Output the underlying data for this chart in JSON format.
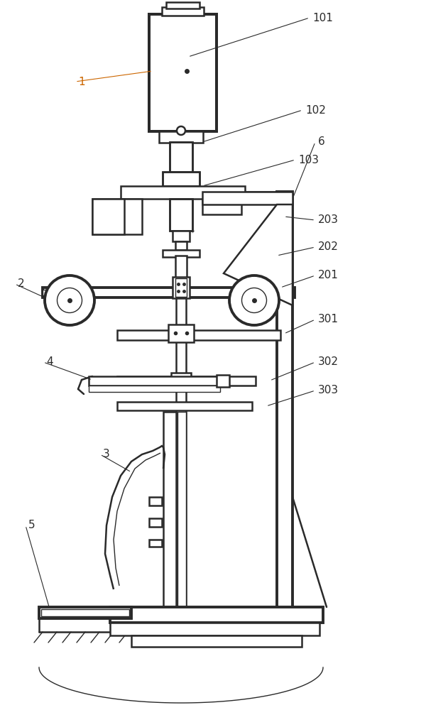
{
  "bg_color": "#ffffff",
  "line_color": "#2a2a2a",
  "hatch_line_color": "#888888",
  "figsize": [
    6.0,
    10.0
  ],
  "dpi": 100,
  "ann_color": "#2a2a2a",
  "label1_color": "#cc6600"
}
